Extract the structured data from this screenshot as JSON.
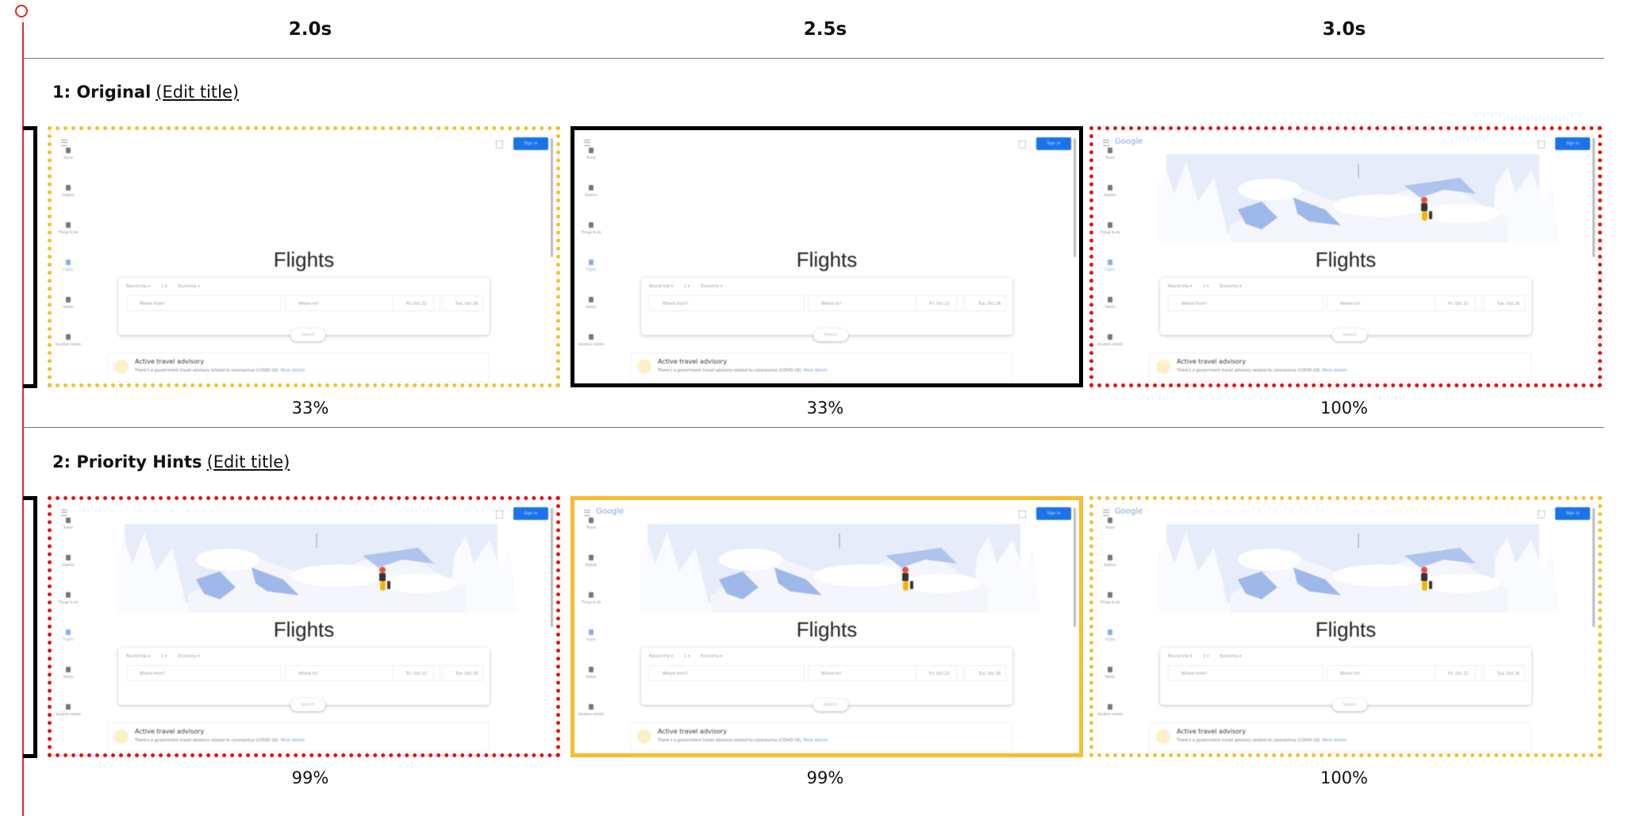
{
  "columns": [
    "2.0s",
    "2.5s",
    "3.0s"
  ],
  "colors": {
    "yellow": "#fbbd2e",
    "red": "#ee1111",
    "black": "#000000",
    "timeline": "#e8232a",
    "signin_blue": "#1a73e8"
  },
  "thumbnail": {
    "logo": "Google",
    "signin": "Sign in",
    "sidebar": [
      "Travel",
      "Explore",
      "Things to do",
      "Flights",
      "Hotels",
      "Vacation rentals"
    ],
    "active_sidebar": "Flights",
    "heading": "Flights",
    "trip_type": "Round trip",
    "passengers": "1",
    "cabin": "Economy",
    "from_placeholder": "Where from?",
    "to_placeholder": "Where to?",
    "depart": "Fri, Oct 22",
    "return": "Tue, Oct 26",
    "search": "Search",
    "advisory_title": "Active travel advisory",
    "advisory_text": "There's a government travel advisory related to coronavirus (COVID-19).",
    "advisory_link": "More details"
  },
  "rows": [
    {
      "title": "1: Original",
      "edit": "(Edit title)",
      "frames": [
        {
          "percent": "33%",
          "border": "dotted",
          "color": "yellow",
          "illustration": false,
          "logo": false
        },
        {
          "percent": "33%",
          "border": "solid",
          "color": "black",
          "illustration": false,
          "logo": false
        },
        {
          "percent": "100%",
          "border": "dotted",
          "color": "red",
          "illustration": true,
          "logo": true
        }
      ]
    },
    {
      "title": "2: Priority Hints",
      "edit": "(Edit title)",
      "frames": [
        {
          "percent": "99%",
          "border": "dotted",
          "color": "red",
          "illustration": true,
          "logo": false
        },
        {
          "percent": "99%",
          "border": "solid",
          "color": "yellow",
          "illustration": true,
          "logo": true
        },
        {
          "percent": "100%",
          "border": "dotted",
          "color": "yellow",
          "illustration": true,
          "logo": true
        }
      ]
    }
  ]
}
